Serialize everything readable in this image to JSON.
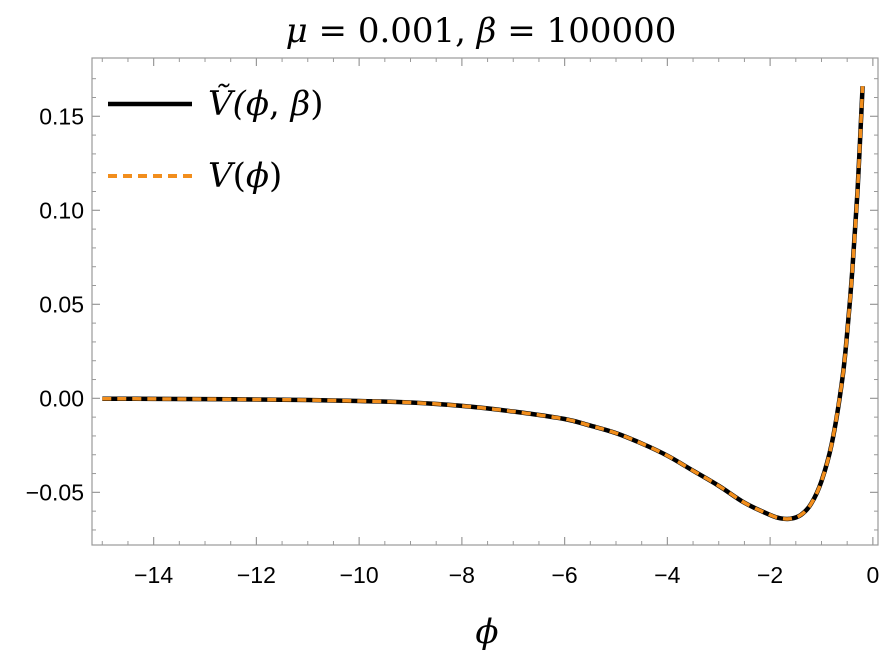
{
  "chart_data": {
    "type": "line",
    "title": {
      "parts": [
        {
          "text": "μ",
          "italic": true
        },
        {
          "text": " = 0.001, ",
          "italic": false
        },
        {
          "text": "β",
          "italic": true
        },
        {
          "text": " = 100000",
          "italic": false
        }
      ]
    },
    "xlabel": "ϕ",
    "ylabel": "",
    "xlim": [
      -15.2,
      0.1
    ],
    "ylim": [
      -0.078,
      0.181
    ],
    "xticks": [
      -14,
      -12,
      -10,
      -8,
      -6,
      -4,
      -2,
      0
    ],
    "xtick_labels": [
      "−14",
      "−12",
      "−10",
      "−8",
      "−6",
      "−4",
      "−2",
      "0"
    ],
    "yticks": [
      -0.05,
      0.0,
      0.05,
      0.1,
      0.15
    ],
    "ytick_labels": [
      "−0.05",
      "0.00",
      "0.05",
      "0.10",
      "0.15"
    ],
    "legend": {
      "placement": "top-left",
      "entries": [
        {
          "label_parts": [
            {
              "text": "Ṽ(",
              "italic": true
            },
            {
              "text": "ϕ",
              "italic": true
            },
            {
              "text": ", ",
              "italic": false
            },
            {
              "text": "β",
              "italic": true
            },
            {
              "text": ")",
              "italic": false
            }
          ],
          "series": 0
        },
        {
          "label_parts": [
            {
              "text": "V",
              "italic": true
            },
            {
              "text": "(",
              "italic": false
            },
            {
              "text": "ϕ",
              "italic": true
            },
            {
              "text": ")",
              "italic": false
            }
          ],
          "series": 1
        }
      ]
    },
    "series": [
      {
        "style": "solid",
        "color": "#000000",
        "x": [
          -15.0,
          -14.0,
          -13.0,
          -12.0,
          -11.0,
          -10.0,
          -9.0,
          -8.0,
          -7.0,
          -6.0,
          -5.5,
          -5.0,
          -4.5,
          -4.0,
          -3.5,
          -3.0,
          -2.5,
          -2.0,
          -1.8,
          -1.6,
          -1.4,
          -1.2,
          -1.0,
          -0.8,
          -0.6,
          -0.5,
          -0.4,
          -0.3,
          -0.2
        ],
        "y": [
          -0.0002,
          -0.0003,
          -0.0004,
          -0.0006,
          -0.0009,
          -0.0014,
          -0.0022,
          -0.004,
          -0.007,
          -0.011,
          -0.0145,
          -0.0185,
          -0.024,
          -0.0305,
          -0.0385,
          -0.0465,
          -0.0555,
          -0.062,
          -0.0638,
          -0.064,
          -0.062,
          -0.056,
          -0.044,
          -0.024,
          0.009,
          0.035,
          0.068,
          0.11,
          0.166
        ]
      },
      {
        "style": "dashed",
        "color": "#f28e1c",
        "x": [
          -15.0,
          -14.0,
          -13.0,
          -12.0,
          -11.0,
          -10.0,
          -9.0,
          -8.0,
          -7.0,
          -6.0,
          -5.5,
          -5.0,
          -4.5,
          -4.0,
          -3.5,
          -3.0,
          -2.5,
          -2.0,
          -1.8,
          -1.6,
          -1.4,
          -1.2,
          -1.0,
          -0.8,
          -0.6,
          -0.5,
          -0.4,
          -0.3,
          -0.2
        ],
        "y": [
          -0.0002,
          -0.0003,
          -0.0004,
          -0.0006,
          -0.0009,
          -0.0014,
          -0.0022,
          -0.004,
          -0.007,
          -0.011,
          -0.0145,
          -0.0185,
          -0.024,
          -0.0305,
          -0.0385,
          -0.0465,
          -0.0555,
          -0.062,
          -0.0638,
          -0.064,
          -0.062,
          -0.056,
          -0.044,
          -0.024,
          0.009,
          0.035,
          0.068,
          0.11,
          0.166
        ]
      }
    ],
    "grid": false,
    "frame_color": "#999999"
  }
}
